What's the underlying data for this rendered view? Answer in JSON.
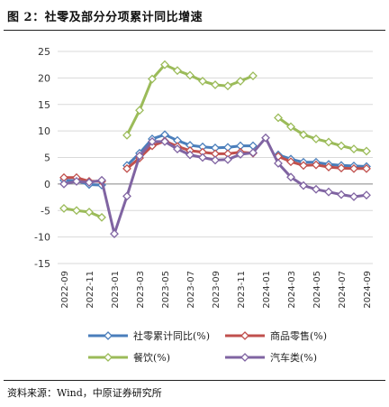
{
  "header": {
    "title": "图 2：社零及部分分项累计同比增速"
  },
  "footer": {
    "source": "资料来源：Wind，中原证券研究所"
  },
  "chart_data": {
    "type": "line",
    "ylim": [
      -15,
      25
    ],
    "yticks": [
      "25",
      "20",
      "15",
      "10",
      "5",
      "0",
      "-5",
      "-10",
      "-15"
    ],
    "x": [
      "2022-09",
      "2022-10",
      "2022-11",
      "2022-12",
      "2023-01",
      "2023-02",
      "2023-03",
      "2023-04",
      "2023-05",
      "2023-06",
      "2023-07",
      "2023-08",
      "2023-09",
      "2023-10",
      "2023-11",
      "2023-12",
      "2024-01",
      "2024-02",
      "2024-03",
      "2024-04",
      "2024-05",
      "2024-06",
      "2024-07",
      "2024-08",
      "2024-09"
    ],
    "xtick_labels": [
      "2022-09",
      "2022-11",
      "2023-01",
      "2023-03",
      "2023-05",
      "2023-07",
      "2023-09",
      "2023-11",
      "2024-01",
      "2024-03",
      "2024-05",
      "2024-07",
      "2024-09"
    ],
    "series": [
      {
        "name": "社零累计同比(%)",
        "color": "#4a7ebb",
        "values": [
          0.7,
          0.6,
          -0.1,
          -0.2,
          null,
          3.5,
          5.8,
          8.5,
          9.3,
          8.2,
          7.3,
          7.0,
          6.8,
          6.9,
          7.2,
          7.2,
          null,
          5.5,
          4.7,
          4.1,
          4.1,
          3.7,
          3.5,
          3.4,
          3.3
        ]
      },
      {
        "name": "商品零售(%)",
        "color": "#c0504d",
        "values": [
          1.2,
          1.2,
          0.5,
          0.5,
          null,
          2.9,
          4.9,
          7.2,
          8.1,
          7.1,
          6.3,
          6.0,
          5.7,
          5.7,
          6.0,
          5.8,
          null,
          5.2,
          4.2,
          3.5,
          3.6,
          3.2,
          3.0,
          2.9,
          2.9
        ]
      },
      {
        "name": "餐饮(%)",
        "color": "#9bbb59",
        "values": [
          -4.6,
          -5.0,
          -5.3,
          -6.3,
          null,
          9.2,
          13.9,
          19.8,
          22.5,
          21.4,
          20.5,
          19.4,
          18.7,
          18.5,
          19.4,
          20.4,
          null,
          12.5,
          10.8,
          9.3,
          8.5,
          7.9,
          7.2,
          6.6,
          6.2
        ]
      },
      {
        "name": "汽车类(%)",
        "color": "#8064a2",
        "values": [
          0.0,
          0.5,
          0.3,
          0.7,
          -9.4,
          -2.3,
          5.3,
          8.0,
          8.0,
          6.6,
          5.5,
          5.0,
          4.5,
          4.6,
          5.6,
          5.9,
          8.7,
          3.9,
          1.3,
          -0.3,
          -1.0,
          -1.5,
          -2.0,
          -2.4,
          -2.1
        ]
      }
    ]
  }
}
